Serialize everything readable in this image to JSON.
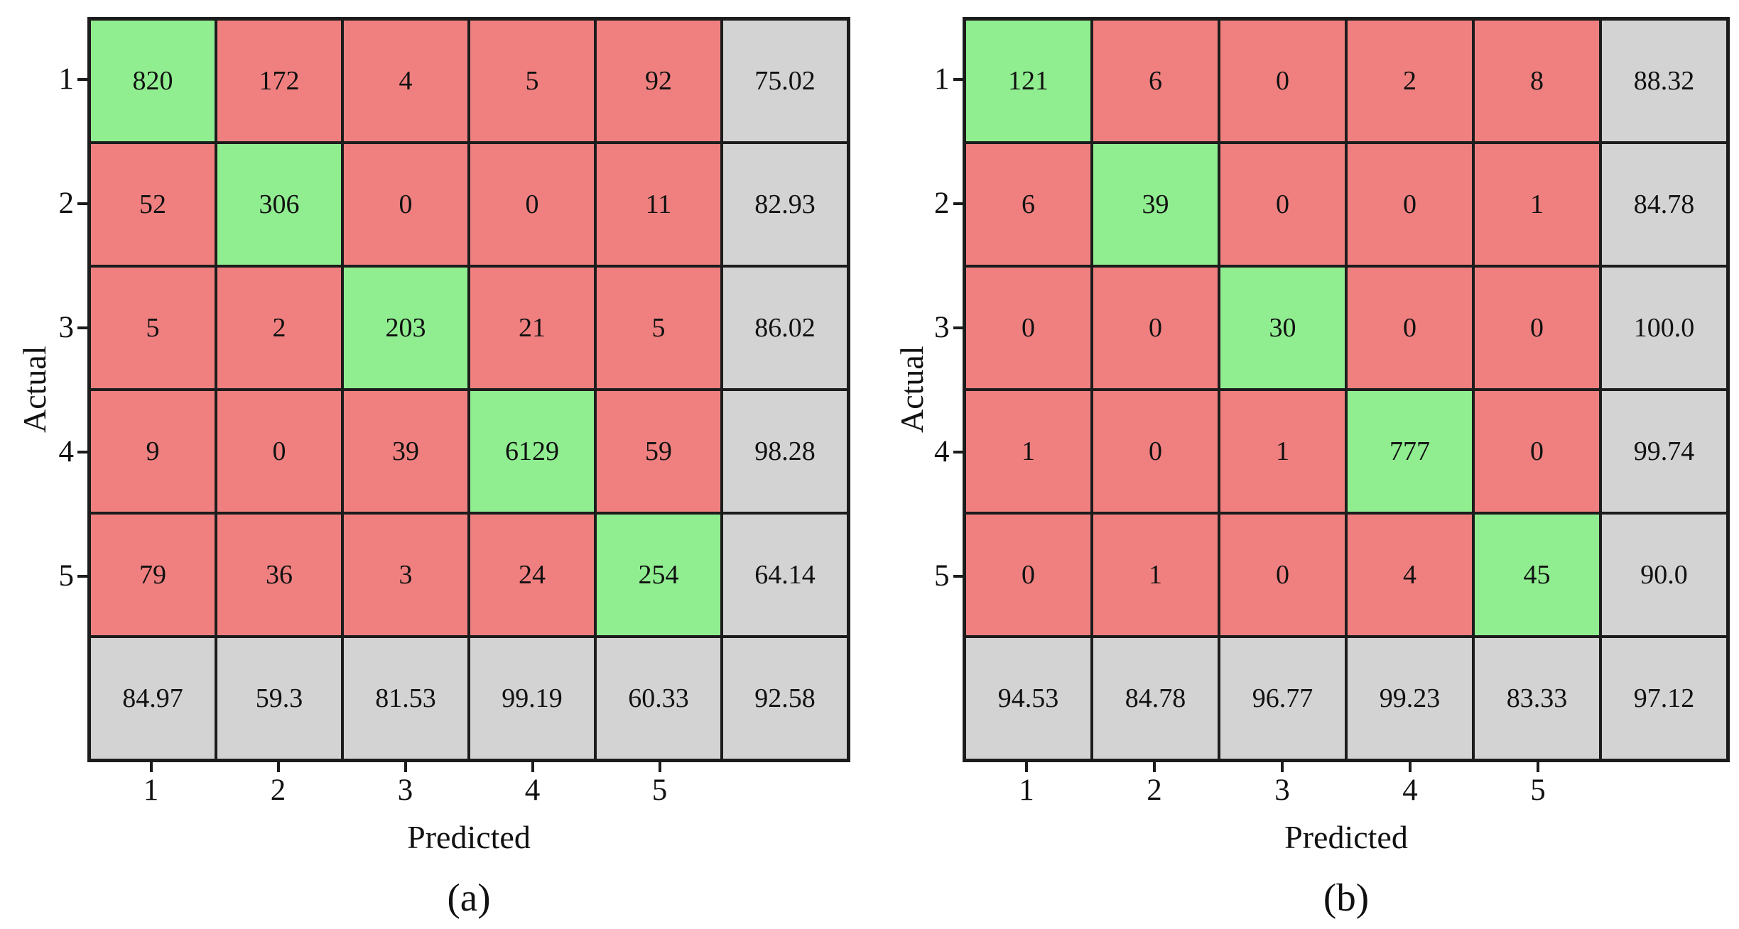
{
  "figure": {
    "description": "Two confusion matrices with per-class accuracy summaries",
    "background": "#ffffff"
  },
  "colors": {
    "correct": "#90ee90",
    "incorrect": "#f08080",
    "summary": "#d3d3d3",
    "border": "#1c1c1c",
    "text": "#111111"
  },
  "chart_data": [
    {
      "type": "heatmap",
      "subtype": "confusion-matrix",
      "caption": "(a)",
      "xlabel": "Predicted",
      "ylabel": "Actual",
      "x_tick_labels": [
        "1",
        "2",
        "3",
        "4",
        "5"
      ],
      "y_tick_labels": [
        "1",
        "2",
        "3",
        "4",
        "5"
      ],
      "matrix": [
        [
          "820",
          "172",
          "4",
          "5",
          "92"
        ],
        [
          "52",
          "306",
          "0",
          "0",
          "11"
        ],
        [
          "5",
          "2",
          "203",
          "21",
          "5"
        ],
        [
          "9",
          "0",
          "39",
          "6129",
          "59"
        ],
        [
          "79",
          "36",
          "3",
          "24",
          "254"
        ]
      ],
      "row_accuracy": [
        "75.02",
        "82.93",
        "86.02",
        "98.28",
        "64.14"
      ],
      "col_accuracy": [
        "84.97",
        "59.3",
        "81.53",
        "99.19",
        "60.33"
      ],
      "overall_accuracy": "92.58",
      "legend": "diagonal cells green (correct), off-diagonal red (errors), gray row/column are accuracy percentages"
    },
    {
      "type": "heatmap",
      "subtype": "confusion-matrix",
      "caption": "(b)",
      "xlabel": "Predicted",
      "ylabel": "Actual",
      "x_tick_labels": [
        "1",
        "2",
        "3",
        "4",
        "5"
      ],
      "y_tick_labels": [
        "1",
        "2",
        "3",
        "4",
        "5"
      ],
      "matrix": [
        [
          "121",
          "6",
          "0",
          "2",
          "8"
        ],
        [
          "6",
          "39",
          "0",
          "0",
          "1"
        ],
        [
          "0",
          "0",
          "30",
          "0",
          "0"
        ],
        [
          "1",
          "0",
          "1",
          "777",
          "0"
        ],
        [
          "0",
          "1",
          "0",
          "4",
          "45"
        ]
      ],
      "row_accuracy": [
        "88.32",
        "84.78",
        "100.0",
        "99.74",
        "90.0"
      ],
      "col_accuracy": [
        "94.53",
        "84.78",
        "96.77",
        "99.23",
        "83.33"
      ],
      "overall_accuracy": "97.12",
      "legend": "diagonal cells green (correct), off-diagonal red (errors), gray row/column are accuracy percentages"
    }
  ]
}
